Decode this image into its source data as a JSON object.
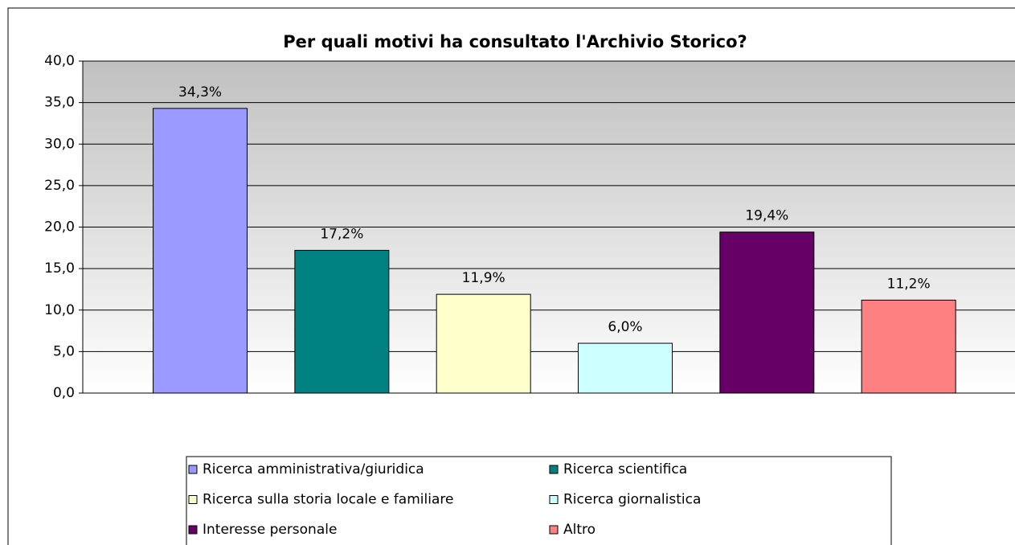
{
  "chart_data": {
    "type": "bar",
    "title": "Per quali motivi ha consultato l'Archivio Storico?",
    "categories": [
      null
    ],
    "series": [
      {
        "name": "Ricerca amministrativa/giuridica",
        "color": "#9999ff",
        "values": [
          34.3
        ],
        "value_labels": [
          "34,3%"
        ]
      },
      {
        "name": "Ricerca scientifica",
        "color": "#008080",
        "values": [
          17.2
        ],
        "value_labels": [
          "17,2%"
        ]
      },
      {
        "name": "Ricerca sulla storia locale e familiare",
        "color": "#ffffcc",
        "values": [
          11.9
        ],
        "value_labels": [
          "11,9%"
        ]
      },
      {
        "name": "Ricerca giornalistica",
        "color": "#ccffff",
        "values": [
          6.0
        ],
        "value_labels": [
          "6,0%"
        ]
      },
      {
        "name": "Interesse personale",
        "color": "#660066",
        "values": [
          19.4
        ],
        "value_labels": [
          "19,4%"
        ]
      },
      {
        "name": "Altro",
        "color": "#ff8080",
        "values": [
          11.2
        ],
        "value_labels": [
          "11,2%"
        ]
      }
    ],
    "ylim": [
      0,
      40
    ],
    "yticks": [
      {
        "value": 0,
        "label": "0,0"
      },
      {
        "value": 5,
        "label": "5,0"
      },
      {
        "value": 10,
        "label": "10,0"
      },
      {
        "value": 15,
        "label": "15,0"
      },
      {
        "value": 20,
        "label": "20,0"
      },
      {
        "value": 25,
        "label": "25,0"
      },
      {
        "value": 30,
        "label": "30,0"
      },
      {
        "value": 35,
        "label": "35,0"
      },
      {
        "value": 40,
        "label": "40,0"
      }
    ],
    "grid": true,
    "legend": "bottom"
  }
}
